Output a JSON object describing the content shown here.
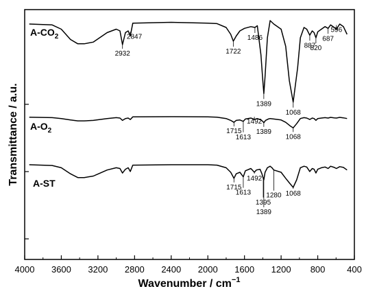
{
  "chart_data": {
    "type": "line",
    "xlabel": "Wavenumber / cm",
    "xlabel_sup": "−1",
    "ylabel": "Transmittance / a.u.",
    "xlim": [
      4000,
      400
    ],
    "x_reversed": true,
    "x_ticks": [
      4000,
      3600,
      3200,
      2800,
      2400,
      2000,
      1600,
      1200,
      800,
      400
    ],
    "y_ticks_labeled": false,
    "grid": false,
    "series": [
      {
        "name": "A-CO",
        "name_sub": "2",
        "points": [
          [
            3950,
            96
          ],
          [
            3700,
            95
          ],
          [
            3600,
            90
          ],
          [
            3500,
            78
          ],
          [
            3420,
            73
          ],
          [
            3350,
            73
          ],
          [
            3250,
            75
          ],
          [
            3100,
            86
          ],
          [
            3000,
            90
          ],
          [
            2960,
            88
          ],
          [
            2932,
            72
          ],
          [
            2900,
            86
          ],
          [
            2870,
            88
          ],
          [
            2847,
            82
          ],
          [
            2820,
            97
          ],
          [
            2400,
            98
          ],
          [
            2200,
            97.5
          ],
          [
            2000,
            97
          ],
          [
            1900,
            96.5
          ],
          [
            1800,
            92
          ],
          [
            1750,
            84
          ],
          [
            1722,
            76
          ],
          [
            1690,
            82
          ],
          [
            1650,
            88
          ],
          [
            1600,
            91
          ],
          [
            1530,
            93
          ],
          [
            1486,
            92
          ],
          [
            1460,
            94
          ],
          [
            1420,
            60
          ],
          [
            1400,
            30
          ],
          [
            1389,
            15
          ],
          [
            1375,
            35
          ],
          [
            1350,
            80
          ],
          [
            1320,
            100
          ],
          [
            1280,
            96
          ],
          [
            1200,
            90
          ],
          [
            1150,
            70
          ],
          [
            1110,
            30
          ],
          [
            1068,
            5
          ],
          [
            1020,
            45
          ],
          [
            990,
            80
          ],
          [
            950,
            92
          ],
          [
            920,
            90
          ],
          [
            887,
            83
          ],
          [
            860,
            88
          ],
          [
            840,
            86
          ],
          [
            820,
            80
          ],
          [
            800,
            87
          ],
          [
            760,
            90
          ],
          [
            720,
            93
          ],
          [
            687,
            91
          ],
          [
            660,
            95
          ],
          [
            620,
            92
          ],
          [
            596,
            90
          ],
          [
            560,
            96
          ],
          [
            520,
            93
          ],
          [
            480,
            84
          ]
        ]
      },
      {
        "name": "A-O",
        "name_sub": "2",
        "points": [
          [
            3950,
            99
          ],
          [
            3700,
            98
          ],
          [
            3600,
            96
          ],
          [
            3500,
            93
          ],
          [
            3420,
            91
          ],
          [
            3350,
            91
          ],
          [
            3250,
            92
          ],
          [
            3100,
            96
          ],
          [
            3000,
            98
          ],
          [
            2960,
            97
          ],
          [
            2932,
            92
          ],
          [
            2900,
            96
          ],
          [
            2870,
            97
          ],
          [
            2847,
            94
          ],
          [
            2820,
            99.5
          ],
          [
            2400,
            100
          ],
          [
            2000,
            99.5
          ],
          [
            1900,
            99
          ],
          [
            1800,
            96
          ],
          [
            1750,
            92
          ],
          [
            1715,
            88
          ],
          [
            1690,
            92
          ],
          [
            1650,
            93
          ],
          [
            1613,
            90
          ],
          [
            1590,
            95
          ],
          [
            1530,
            97
          ],
          [
            1500,
            95
          ],
          [
            1492,
            94
          ],
          [
            1460,
            96
          ],
          [
            1420,
            93
          ],
          [
            1400,
            90
          ],
          [
            1389,
            87
          ],
          [
            1370,
            92
          ],
          [
            1340,
            95
          ],
          [
            1320,
            96
          ],
          [
            1280,
            95
          ],
          [
            1200,
            93
          ],
          [
            1150,
            88
          ],
          [
            1100,
            80
          ],
          [
            1068,
            76
          ],
          [
            1030,
            85
          ],
          [
            990,
            96
          ],
          [
            950,
            98
          ],
          [
            920,
            97
          ],
          [
            887,
            94
          ],
          [
            860,
            97
          ],
          [
            840,
            96
          ],
          [
            820,
            92
          ],
          [
            800,
            96
          ],
          [
            760,
            97
          ],
          [
            720,
            98
          ],
          [
            687,
            97
          ],
          [
            660,
            98.5
          ],
          [
            620,
            97.5
          ],
          [
            596,
            97
          ],
          [
            560,
            98.5
          ],
          [
            520,
            97.5
          ],
          [
            480,
            96
          ]
        ]
      },
      {
        "name": "A-ST",
        "name_sub": "",
        "points": [
          [
            3950,
            100
          ],
          [
            3700,
            99
          ],
          [
            3600,
            96
          ],
          [
            3500,
            88
          ],
          [
            3420,
            83
          ],
          [
            3350,
            83
          ],
          [
            3250,
            85
          ],
          [
            3100,
            93
          ],
          [
            3000,
            96
          ],
          [
            2960,
            95
          ],
          [
            2932,
            89
          ],
          [
            2900,
            94
          ],
          [
            2870,
            96
          ],
          [
            2847,
            91
          ],
          [
            2820,
            99.5
          ],
          [
            2400,
            100
          ],
          [
            2000,
            100
          ],
          [
            1900,
            99.5
          ],
          [
            1800,
            96
          ],
          [
            1750,
            90
          ],
          [
            1715,
            82
          ],
          [
            1690,
            88
          ],
          [
            1650,
            90
          ],
          [
            1613,
            84
          ],
          [
            1590,
            92
          ],
          [
            1530,
            95
          ],
          [
            1492,
            90
          ],
          [
            1470,
            93
          ],
          [
            1430,
            94
          ],
          [
            1410,
            88
          ],
          [
            1395,
            82
          ],
          [
            1389,
            80
          ],
          [
            1375,
            90
          ],
          [
            1350,
            96
          ],
          [
            1320,
            98
          ],
          [
            1300,
            96
          ],
          [
            1280,
            93
          ],
          [
            1200,
            90
          ],
          [
            1150,
            82
          ],
          [
            1110,
            76
          ],
          [
            1068,
            70
          ],
          [
            1030,
            80
          ],
          [
            990,
            96
          ],
          [
            950,
            98
          ],
          [
            920,
            97
          ],
          [
            887,
            91
          ],
          [
            860,
            95
          ],
          [
            840,
            94
          ],
          [
            820,
            89
          ],
          [
            800,
            94
          ],
          [
            760,
            96
          ],
          [
            720,
            97
          ],
          [
            687,
            95
          ],
          [
            660,
            98
          ],
          [
            620,
            96.5
          ],
          [
            596,
            95
          ],
          [
            560,
            97.5
          ],
          [
            520,
            96.5
          ],
          [
            480,
            93
          ]
        ]
      }
    ],
    "peak_labels": [
      {
        "series": 0,
        "text": "2932",
        "x": 2932
      },
      {
        "series": 0,
        "text": "2847",
        "x": 2847
      },
      {
        "series": 0,
        "text": "1722",
        "x": 1722
      },
      {
        "series": 0,
        "text": "1486",
        "x": 1486
      },
      {
        "series": 0,
        "text": "1389",
        "x": 1389
      },
      {
        "series": 0,
        "text": "1068",
        "x": 1068
      },
      {
        "series": 0,
        "text": "887",
        "x": 887
      },
      {
        "series": 0,
        "text": "820",
        "x": 820
      },
      {
        "series": 0,
        "text": "687",
        "x": 687
      },
      {
        "series": 0,
        "text": "596",
        "x": 596
      },
      {
        "series": 1,
        "text": "1715",
        "x": 1715
      },
      {
        "series": 1,
        "text": "1613",
        "x": 1613
      },
      {
        "series": 1,
        "text": "1492",
        "x": 1492
      },
      {
        "series": 1,
        "text": "1389",
        "x": 1389
      },
      {
        "series": 1,
        "text": "1068",
        "x": 1068
      },
      {
        "series": 2,
        "text": "1715",
        "x": 1715
      },
      {
        "series": 2,
        "text": "1613",
        "x": 1613
      },
      {
        "series": 2,
        "text": "1492",
        "x": 1492
      },
      {
        "series": 2,
        "text": "1395",
        "x": 1395
      },
      {
        "series": 2,
        "text": "1389",
        "x": 1389
      },
      {
        "series": 2,
        "text": "1280",
        "x": 1280
      },
      {
        "series": 2,
        "text": "1068",
        "x": 1068
      }
    ]
  }
}
